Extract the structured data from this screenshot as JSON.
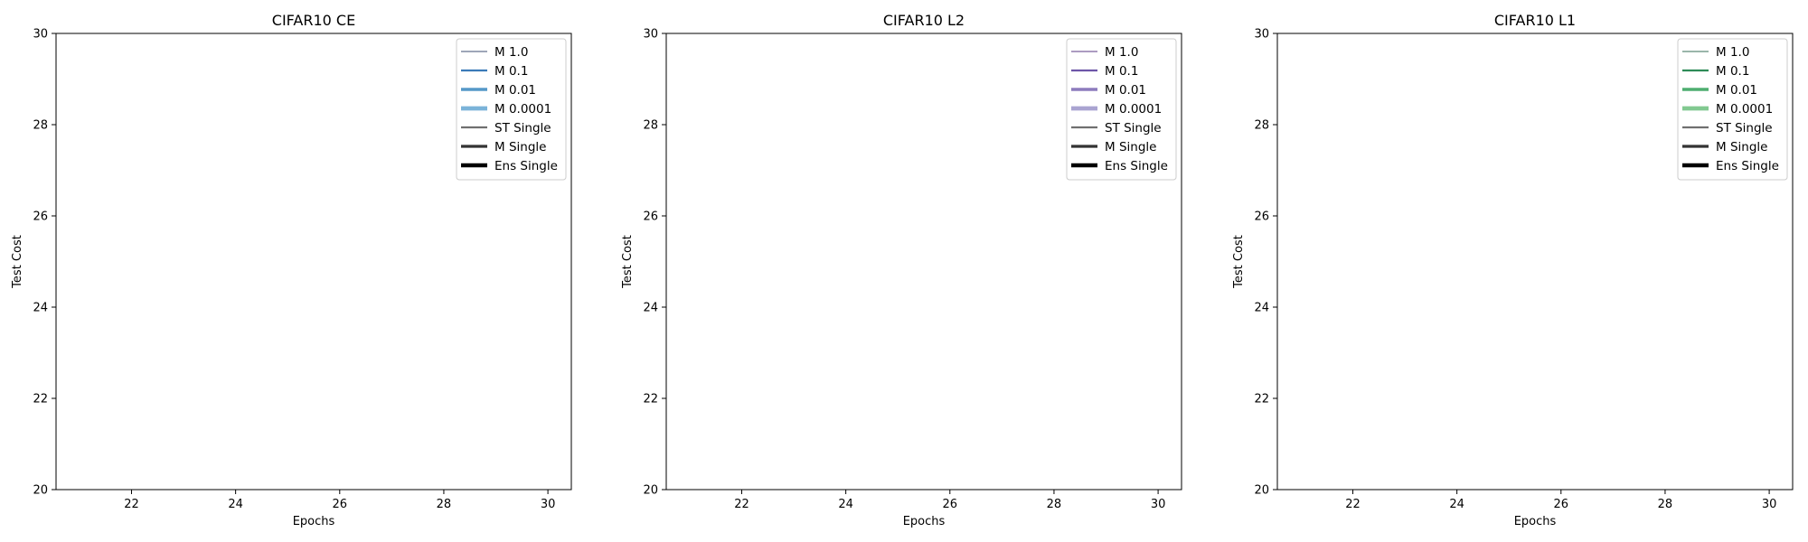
{
  "figure": {
    "background": "#ffffff"
  },
  "chart_data": [
    {
      "type": "line",
      "title": "CIFAR10 CE",
      "xlabel": "Epochs",
      "ylabel": "Test Cost",
      "xlim": [
        20.55,
        30.45
      ],
      "ylim": [
        20,
        30
      ],
      "xticks": [
        22,
        24,
        26,
        28,
        30
      ],
      "yticks": [
        20,
        22,
        24,
        26,
        28,
        30
      ],
      "grid": false,
      "legend_position": "top-right",
      "series": [
        {
          "name": "M 1.0",
          "color": "#65728e",
          "width": 1.2,
          "x": [],
          "y": []
        },
        {
          "name": "M 0.1",
          "color": "#3b7ab8",
          "width": 2.2,
          "x": [],
          "y": []
        },
        {
          "name": "M 0.01",
          "color": "#5598c8",
          "width": 3.4,
          "x": [],
          "y": []
        },
        {
          "name": "M 0.0001",
          "color": "#7bb3d9",
          "width": 4.8,
          "x": [],
          "y": []
        },
        {
          "name": "ST Single",
          "color": "#707070",
          "width": 2.2,
          "x": [],
          "y": []
        },
        {
          "name": "M Single",
          "color": "#333333",
          "width": 3.2,
          "x": [],
          "y": []
        },
        {
          "name": "Ens Single",
          "color": "#000000",
          "width": 4.6,
          "x": [],
          "y": []
        }
      ]
    },
    {
      "type": "line",
      "title": "CIFAR10 L2",
      "xlabel": "Epochs",
      "ylabel": "Test Cost",
      "xlim": [
        20.55,
        30.45
      ],
      "ylim": [
        20,
        30
      ],
      "xticks": [
        22,
        24,
        26,
        28,
        30
      ],
      "yticks": [
        20,
        22,
        24,
        26,
        28,
        30
      ],
      "grid": false,
      "legend_position": "top-right",
      "series": [
        {
          "name": "M 1.0",
          "color": "#7a5f9c",
          "width": 1.2,
          "x": [],
          "y": []
        },
        {
          "name": "M 0.1",
          "color": "#6e56a8",
          "width": 2.2,
          "x": [],
          "y": []
        },
        {
          "name": "M 0.01",
          "color": "#8d7cbd",
          "width": 3.4,
          "x": [],
          "y": []
        },
        {
          "name": "M 0.0001",
          "color": "#aaa4d1",
          "width": 4.8,
          "x": [],
          "y": []
        },
        {
          "name": "ST Single",
          "color": "#707070",
          "width": 2.2,
          "x": [],
          "y": []
        },
        {
          "name": "M Single",
          "color": "#333333",
          "width": 3.2,
          "x": [],
          "y": []
        },
        {
          "name": "Ens Single",
          "color": "#000000",
          "width": 4.6,
          "x": [],
          "y": []
        }
      ]
    },
    {
      "type": "line",
      "title": "CIFAR10 L1",
      "xlabel": "Epochs",
      "ylabel": "Test Cost",
      "xlim": [
        20.55,
        30.45
      ],
      "ylim": [
        20,
        30
      ],
      "xticks": [
        22,
        24,
        26,
        28,
        30
      ],
      "yticks": [
        20,
        22,
        24,
        26,
        28,
        30
      ],
      "grid": false,
      "legend_position": "top-right",
      "series": [
        {
          "name": "M 1.0",
          "color": "#5e8a78",
          "width": 1.2,
          "x": [],
          "y": []
        },
        {
          "name": "M 0.1",
          "color": "#2e8b57",
          "width": 2.2,
          "x": [],
          "y": []
        },
        {
          "name": "M 0.01",
          "color": "#4fae70",
          "width": 3.4,
          "x": [],
          "y": []
        },
        {
          "name": "M 0.0001",
          "color": "#82c991",
          "width": 4.8,
          "x": [],
          "y": []
        },
        {
          "name": "ST Single",
          "color": "#707070",
          "width": 2.2,
          "x": [],
          "y": []
        },
        {
          "name": "M Single",
          "color": "#333333",
          "width": 3.2,
          "x": [],
          "y": []
        },
        {
          "name": "Ens Single",
          "color": "#000000",
          "width": 4.6,
          "x": [],
          "y": []
        }
      ]
    }
  ]
}
